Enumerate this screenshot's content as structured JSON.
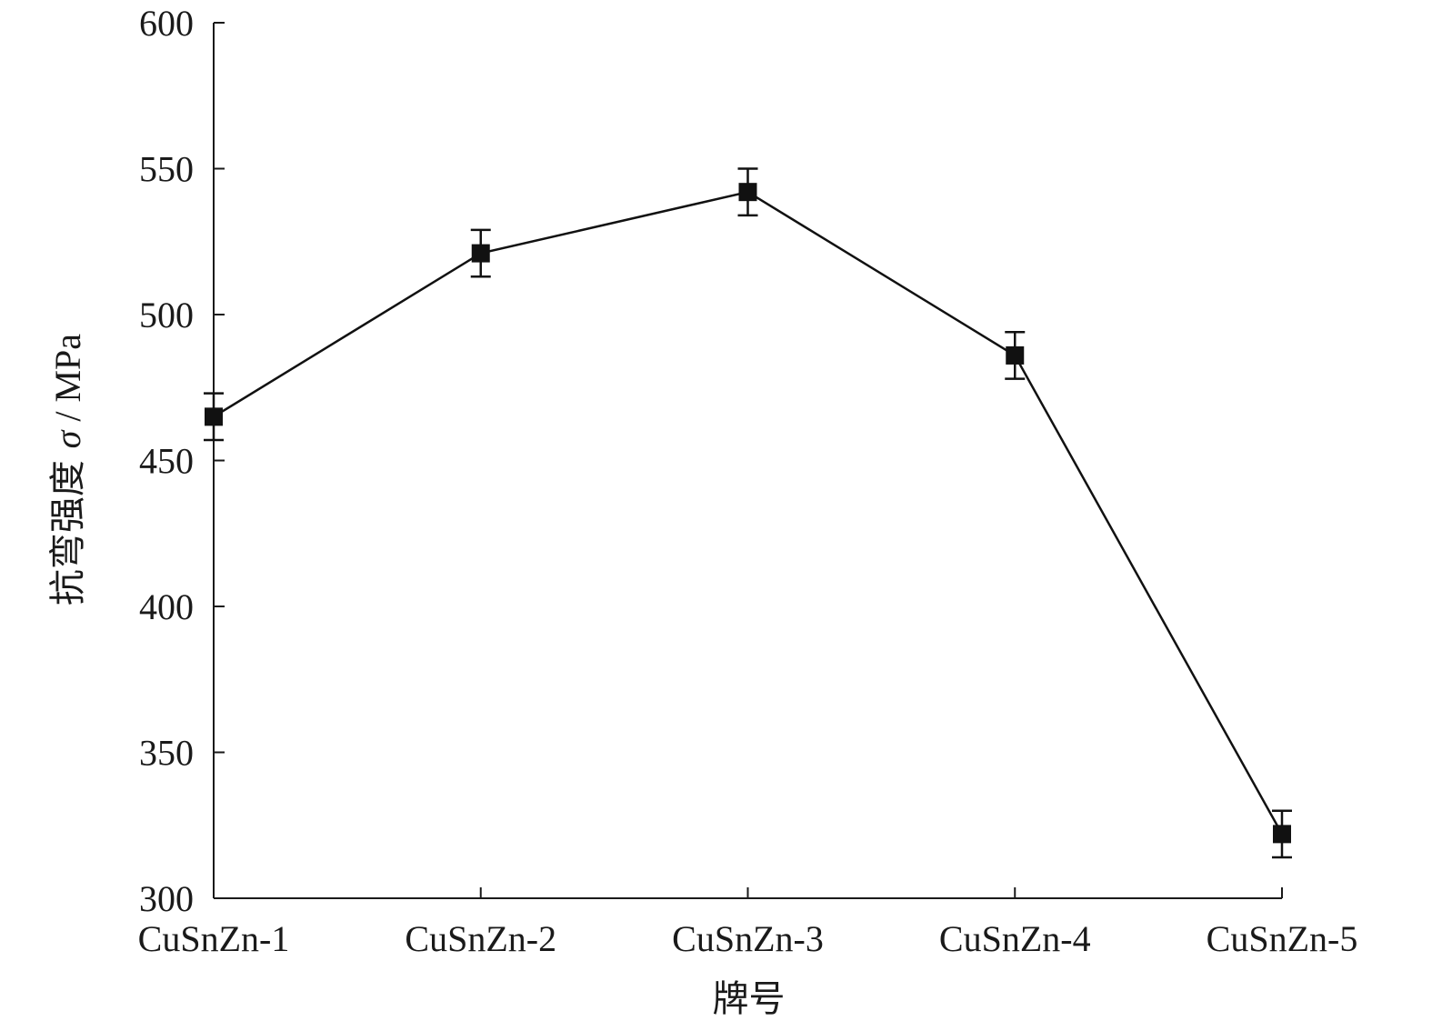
{
  "chart_data": {
    "type": "line",
    "categories": [
      "CuSnZn-1",
      "CuSnZn-2",
      "CuSnZn-3",
      "CuSnZn-4",
      "CuSnZn-5"
    ],
    "series": [
      {
        "values": [
          465,
          521,
          542,
          486,
          322
        ],
        "errors": [
          8,
          8,
          8,
          8,
          8
        ],
        "marker": "square",
        "color": "#111111"
      }
    ],
    "xlabel": "牌号",
    "ylabel": {
      "prefix": "抗弯强度 ",
      "symbol": "σ",
      "suffix": " / MPa"
    },
    "ylim": [
      300,
      600
    ],
    "yticks": [
      300,
      350,
      400,
      450,
      500,
      550,
      600
    ],
    "ytick_labels": [
      "300",
      "350",
      "400",
      "450",
      "500",
      "550",
      "600"
    ],
    "grid": false,
    "legend": "none"
  }
}
